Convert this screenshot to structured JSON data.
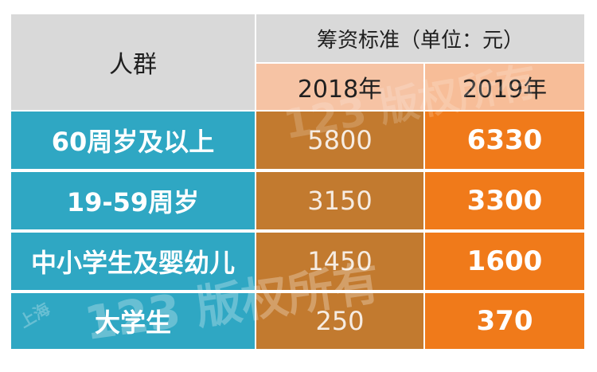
{
  "header": {
    "group_label": "人群",
    "standard_label": "筹资标准（单位：元）",
    "year_2018": "2018年",
    "year_2019": "2019年"
  },
  "rows": [
    {
      "group": "60周岁及以上",
      "v2018": "5800",
      "v2019": "6330"
    },
    {
      "group": "19-59周岁",
      "v2018": "3150",
      "v2019": "3300"
    },
    {
      "group": "中小学生及婴幼儿",
      "v2018": "1450",
      "v2019": "1600"
    },
    {
      "group": "大学生",
      "v2018": "250",
      "v2019": "370"
    }
  ],
  "watermark": {
    "text_main": "123  版权所有",
    "text_city": "上海"
  }
}
